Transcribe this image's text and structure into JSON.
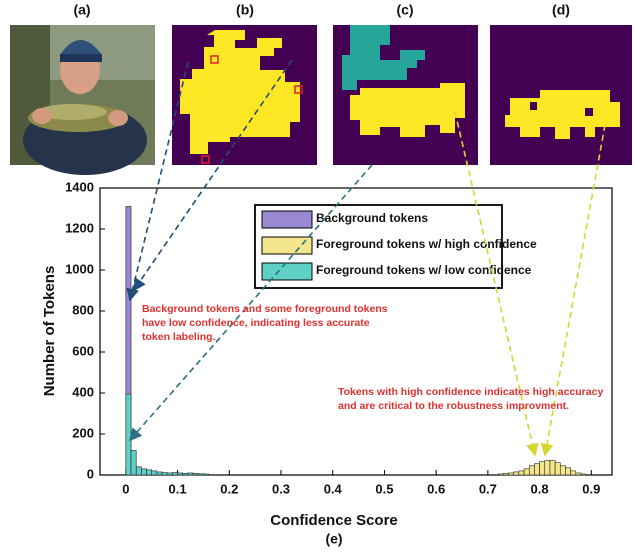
{
  "figure": {
    "panel_labels": [
      "(a)",
      "(b)",
      "(c)",
      "(d)"
    ],
    "caption": "(e)"
  },
  "chart_data": {
    "type": "histogram",
    "xlabel": "Confidence Score",
    "ylabel": "Number of Tokens",
    "bins": [
      0,
      0.01,
      0.02,
      0.03,
      0.04,
      0.05,
      0.06,
      0.07,
      0.08,
      0.09,
      0.1,
      0.11,
      0.12,
      0.13,
      0.14,
      0.15,
      0.16,
      0.17,
      0.18,
      0.19,
      0.2,
      0.21,
      0.22,
      0.23,
      0.24,
      0.25,
      0.26,
      0.27,
      0.28,
      0.29,
      0.3,
      0.31,
      0.32,
      0.33,
      0.34,
      0.35,
      0.36,
      0.37,
      0.38,
      0.39,
      0.4,
      0.41,
      0.42,
      0.43,
      0.44,
      0.45,
      0.46,
      0.47,
      0.48,
      0.49,
      0.5,
      0.51,
      0.52,
      0.53,
      0.54,
      0.55,
      0.56,
      0.57,
      0.58,
      0.59,
      0.6,
      0.61,
      0.62,
      0.63,
      0.64,
      0.65,
      0.66,
      0.67,
      0.68,
      0.69,
      0.7,
      0.71,
      0.72,
      0.73,
      0.74,
      0.75,
      0.76,
      0.77,
      0.78,
      0.79,
      0.8,
      0.81,
      0.82,
      0.83,
      0.84,
      0.85,
      0.86,
      0.87,
      0.88,
      0.89,
      0.9
    ],
    "series": [
      {
        "name": "Background tokens",
        "color": "#9b88d2",
        "values": [
          1310,
          0,
          0,
          0,
          0,
          0,
          0,
          0,
          0,
          0,
          0,
          0,
          0,
          0,
          0,
          0,
          0,
          0,
          0,
          0,
          0,
          0,
          0,
          0,
          0,
          0,
          0,
          0,
          0,
          0,
          0,
          0,
          0,
          0,
          0,
          0,
          0,
          0,
          0,
          0,
          0,
          0,
          0,
          0,
          0,
          0,
          0,
          0,
          0,
          0,
          0,
          0,
          0,
          0,
          0,
          0,
          0,
          0,
          0,
          0,
          0,
          0,
          0,
          0,
          0,
          0,
          0,
          0,
          0,
          0,
          0,
          0,
          0,
          0,
          0,
          0,
          0,
          0,
          0,
          0,
          0,
          0,
          0,
          0,
          0,
          0,
          0,
          0,
          0,
          0
        ]
      },
      {
        "name": "Foreground tokens w/ high confidence",
        "color": "#f4e68c",
        "values": [
          0,
          0,
          0,
          0,
          0,
          0,
          0,
          0,
          0,
          0,
          0,
          0,
          0,
          0,
          0,
          0,
          0,
          0,
          0,
          0,
          0,
          0,
          0,
          0,
          0,
          0,
          0,
          0,
          0,
          0,
          0,
          0,
          0,
          0,
          0,
          0,
          0,
          0,
          0,
          0,
          0,
          0,
          0,
          0,
          0,
          0,
          0,
          0,
          0,
          0,
          0,
          0,
          0,
          0,
          0,
          0,
          0,
          0,
          0,
          0,
          0,
          0,
          0,
          0,
          0,
          0,
          0,
          0,
          0,
          0,
          0,
          0,
          5,
          8,
          10,
          15,
          20,
          30,
          45,
          55,
          65,
          70,
          72,
          60,
          45,
          35,
          20,
          10,
          5,
          0
        ]
      },
      {
        "name": "Foreground tokens w/ low confidence",
        "color": "#5fd0c5",
        "values": [
          395,
          120,
          40,
          30,
          25,
          20,
          15,
          12,
          10,
          12,
          10,
          8,
          10,
          8,
          6,
          5,
          0,
          0,
          0,
          0,
          0,
          0,
          0,
          0,
          0,
          0,
          0,
          0,
          0,
          0,
          0,
          0,
          0,
          0,
          0,
          0,
          0,
          0,
          0,
          0,
          0,
          0,
          0,
          0,
          0,
          0,
          0,
          0,
          0,
          0,
          0,
          0,
          0,
          0,
          0,
          0,
          0,
          0,
          0,
          0,
          0,
          0,
          0,
          0,
          0,
          0,
          0,
          0,
          0,
          0,
          0,
          0,
          0,
          0,
          0,
          0,
          0,
          0,
          0,
          0,
          0,
          0,
          0,
          0,
          0,
          0,
          0,
          0,
          0,
          0
        ]
      }
    ],
    "xlim": [
      -0.05,
      0.94
    ],
    "xticks": [
      0,
      0.1,
      0.2,
      0.3,
      0.4,
      0.5,
      0.6,
      0.7,
      0.8,
      0.9
    ],
    "ylim": [
      0,
      1400
    ],
    "yticks": [
      0,
      200,
      400,
      600,
      800,
      1000,
      1200,
      1400
    ],
    "annotations": [
      "Background tokens and some foreground tokens have low confidence, indicating less accurate token labeling.",
      "Tokens with high confidence indicates high accuracy and are critical to the robustness improvment."
    ]
  }
}
